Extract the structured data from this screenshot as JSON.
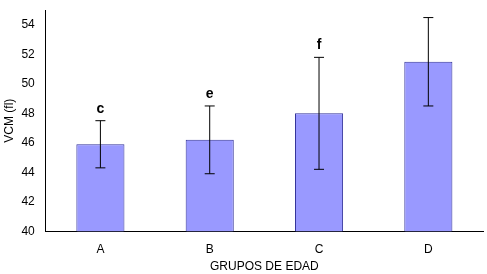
{
  "chart_data": {
    "type": "bar",
    "x_label": "GRUPOS DE EDAD",
    "y_label": "VCM (fl)",
    "categories": [
      "A",
      "B",
      "C",
      "D"
    ],
    "values": [
      45.9,
      46.2,
      48.0,
      51.5
    ],
    "errors": [
      1.6,
      2.3,
      3.8,
      3.0
    ],
    "annotations": [
      "c",
      "e",
      "f",
      null
    ],
    "color": "#9999ff",
    "ylim": [
      40,
      55
    ],
    "yticks": [
      40,
      42,
      44,
      46,
      48,
      50,
      52,
      54
    ],
    "grid": false
  }
}
